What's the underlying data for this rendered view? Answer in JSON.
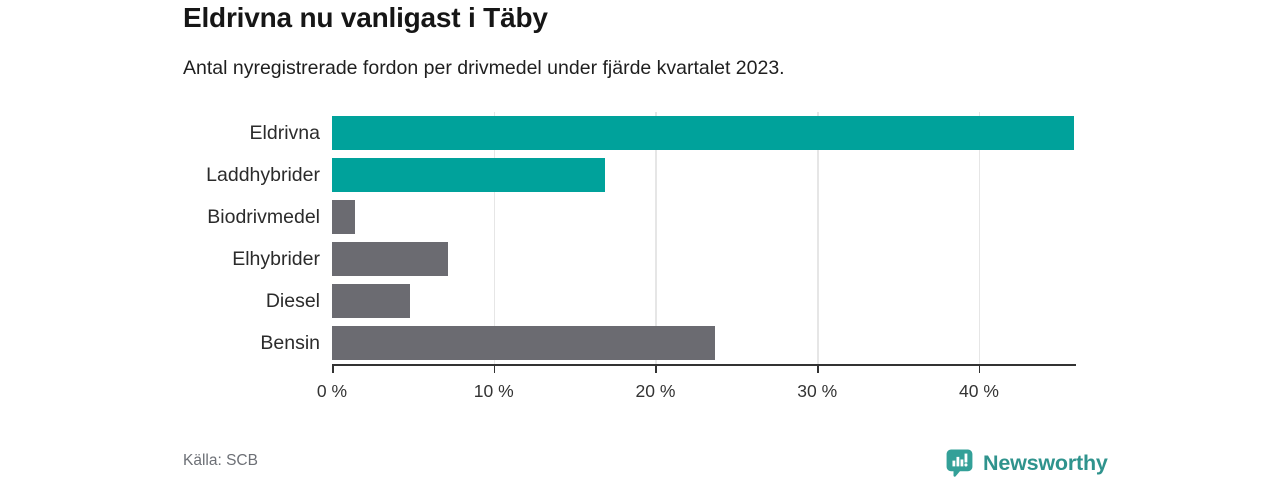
{
  "header": {
    "title": "Eldrivna nu vanligast i Täby",
    "subtitle": "Antal nyregistrerade fordon per drivmedel under fjärde kvartalet 2023."
  },
  "chart_data": {
    "type": "bar",
    "orientation": "horizontal",
    "title": "Eldrivna nu vanligast i Täby",
    "subtitle": "Antal nyregistrerade fordon per drivmedel under fjärde kvartalet 2023.",
    "categories": [
      "Eldrivna",
      "Laddhybrider",
      "Biodrivmedel",
      "Elhybrider",
      "Diesel",
      "Bensin"
    ],
    "values": [
      45.9,
      16.9,
      1.4,
      7.2,
      4.8,
      23.7
    ],
    "unit": "%",
    "xlabel": "",
    "ylabel": "",
    "xlim": [
      0,
      46
    ],
    "x_ticks": [
      0,
      10,
      20,
      30,
      40
    ],
    "x_tick_labels": [
      "0 %",
      "10 %",
      "20 %",
      "30 %",
      "40 %"
    ],
    "bar_colors": [
      "#00a29b",
      "#00a29b",
      "#6b6b71",
      "#6b6b71",
      "#6b6b71",
      "#6b6b71"
    ],
    "grid": "vertical-only",
    "legend": "none"
  },
  "footer": {
    "source": "Källa: SCB",
    "brand": "Newsworthy"
  },
  "colors": {
    "accent_teal": "#00a29b",
    "bar_gray": "#6b6b71",
    "brand_teal": "#2f938d",
    "axis": "#333333",
    "gridline": "#e6e6e6",
    "source_text": "#6d7076"
  },
  "icons": {
    "logo": "newsworthy-bar-chart-bubble-icon"
  }
}
